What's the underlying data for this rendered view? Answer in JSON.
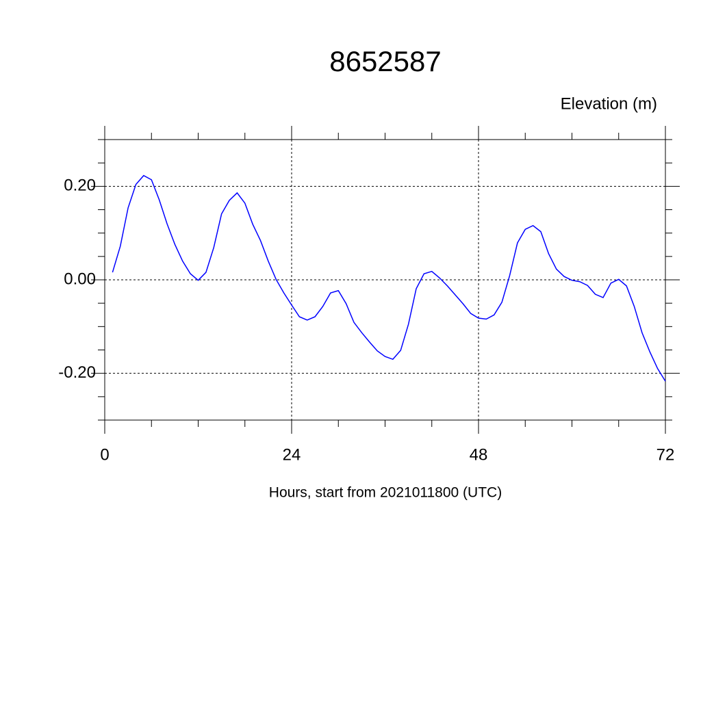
{
  "chart_data": {
    "type": "line",
    "title": "8652587",
    "ylabel": "Elevation (m)",
    "xlabel": "Hours, start from 2021011800 (UTC)",
    "x": [
      1,
      2,
      3,
      4,
      5,
      6,
      7,
      8,
      9,
      10,
      11,
      12,
      13,
      14,
      15,
      16,
      17,
      18,
      19,
      20,
      21,
      22,
      23,
      24,
      25,
      26,
      27,
      28,
      29,
      30,
      31,
      32,
      33,
      34,
      35,
      36,
      37,
      38,
      39,
      40,
      41,
      42,
      43,
      44,
      45,
      46,
      47,
      48,
      49,
      50,
      51,
      52,
      53,
      54,
      55,
      56,
      57,
      58,
      59,
      60,
      61,
      62,
      63,
      64,
      65,
      66,
      67,
      68,
      69,
      70,
      71,
      72
    ],
    "values": [
      0.016,
      0.072,
      0.154,
      0.204,
      0.223,
      0.214,
      0.171,
      0.12,
      0.076,
      0.04,
      0.013,
      -0.001,
      0.016,
      0.069,
      0.141,
      0.17,
      0.186,
      0.164,
      0.119,
      0.084,
      0.04,
      0.001,
      -0.028,
      -0.054,
      -0.079,
      -0.086,
      -0.079,
      -0.057,
      -0.028,
      -0.023,
      -0.051,
      -0.091,
      -0.113,
      -0.133,
      -0.152,
      -0.164,
      -0.17,
      -0.151,
      -0.095,
      -0.019,
      0.013,
      0.018,
      0.004,
      -0.013,
      -0.032,
      -0.051,
      -0.072,
      -0.082,
      -0.084,
      -0.075,
      -0.048,
      0.009,
      0.079,
      0.108,
      0.116,
      0.103,
      0.056,
      0.023,
      0.007,
      -0.001,
      -0.004,
      -0.012,
      -0.031,
      -0.038,
      -0.007,
      0.001,
      -0.013,
      -0.057,
      -0.113,
      -0.154,
      -0.19,
      -0.217
    ],
    "color": "#0000ff",
    "xlim": [
      0,
      72
    ],
    "xticks": [
      0,
      24,
      48,
      72
    ],
    "xminorticks": [
      6,
      12,
      18,
      30,
      36,
      42,
      54,
      60,
      66
    ],
    "ylim": [
      -0.3,
      0.3
    ],
    "yticks": [
      {
        "value": -0.2,
        "label": "-0.20"
      },
      {
        "value": 0,
        "label": "0.00"
      },
      {
        "value": 0.2,
        "label": "0.20"
      }
    ],
    "yminorticks": [
      -0.3,
      -0.25,
      -0.15,
      -0.1,
      -0.05,
      0.05,
      0.1,
      0.15,
      0.25,
      0.3
    ],
    "grid": true
  }
}
